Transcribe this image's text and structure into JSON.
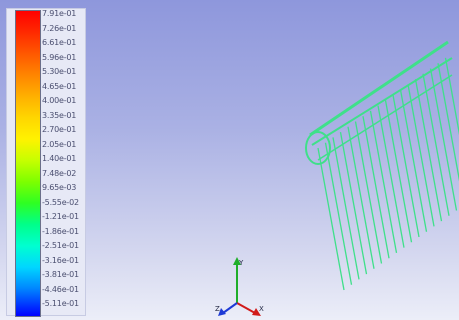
{
  "legend": {
    "labels": [
      "7.91e-01",
      "7.26e-01",
      "6.61e-01",
      "5.96e-01",
      "5.30e-01",
      "4.65e-01",
      "4.00e-01",
      "3.35e-01",
      "2.70e-01",
      "2.05e-01",
      "1.40e-01",
      "7.48e-02",
      "9.65e-03",
      "-5.55e-02",
      "-1.21e-01",
      "-1.86e-01",
      "-2.51e-01",
      "-3.16e-01",
      "-3.81e-01",
      "-4.46e-01",
      "-5.11e-01"
    ]
  },
  "axes": {
    "x": "X",
    "y": "Y",
    "z": "Z"
  },
  "colors": {
    "pathlines": "#3fe08a",
    "axis_x": "#d11a1a",
    "axis_y": "#1fae2b",
    "axis_z": "#1e3ad6"
  }
}
